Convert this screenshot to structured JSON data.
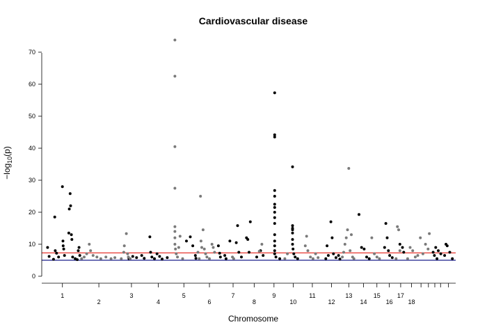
{
  "chart_data": {
    "type": "scatter",
    "title": "Cardiovascular disease",
    "xlabel": "Chromosome",
    "ylabel": "−log",
    "ylabel_sub": "10",
    "ylabel_rest": "(p)",
    "ylim": [
      0,
      75
    ],
    "yticks": [
      0,
      10,
      20,
      30,
      40,
      50,
      60,
      70
    ],
    "grid": false,
    "x_unit": "genome position (chromosome index)",
    "chromosomes": [
      {
        "label": "1",
        "start": 0,
        "end": 1.4,
        "tick_row": 1
      },
      {
        "label": "2",
        "start": 1.4,
        "end": 2.85,
        "tick_row": 2
      },
      {
        "label": "3",
        "start": 2.85,
        "end": 3.95,
        "tick_row": 1
      },
      {
        "label": "4",
        "start": 3.95,
        "end": 4.95,
        "tick_row": 2
      },
      {
        "label": "5",
        "start": 4.95,
        "end": 5.95,
        "tick_row": 1
      },
      {
        "label": "6",
        "start": 5.95,
        "end": 6.95,
        "tick_row": 2
      },
      {
        "label": "7",
        "start": 6.95,
        "end": 7.8,
        "tick_row": 1
      },
      {
        "label": "8",
        "start": 7.8,
        "end": 8.6,
        "tick_row": 2
      },
      {
        "label": "9",
        "start": 8.6,
        "end": 9.35,
        "tick_row": 1
      },
      {
        "label": "10",
        "start": 9.35,
        "end": 10.1,
        "tick_row": 2
      },
      {
        "label": "11",
        "start": 10.1,
        "end": 10.85,
        "tick_row": 1
      },
      {
        "label": "12",
        "start": 10.85,
        "end": 11.6,
        "tick_row": 2
      },
      {
        "label": "13",
        "start": 11.6,
        "end": 12.2,
        "tick_row": 1
      },
      {
        "label": "14",
        "start": 12.2,
        "end": 12.75,
        "tick_row": 2
      },
      {
        "label": "15",
        "start": 12.75,
        "end": 13.25,
        "tick_row": 1
      },
      {
        "label": "16",
        "start": 13.25,
        "end": 13.72,
        "tick_row": 2
      },
      {
        "label": "17",
        "start": 13.72,
        "end": 14.14,
        "tick_row": 1
      },
      {
        "label": "18",
        "start": 14.14,
        "end": 14.57,
        "tick_row": 2
      },
      {
        "label": "",
        "start": 14.57,
        "end": 14.88,
        "tick_row": 1
      },
      {
        "label": "",
        "start": 14.88,
        "end": 15.15,
        "tick_row": 1
      },
      {
        "label": "",
        "start": 15.15,
        "end": 15.38,
        "tick_row": 1
      },
      {
        "label": "",
        "start": 15.38,
        "end": 15.6,
        "tick_row": 1
      },
      {
        "label": "",
        "start": 15.6,
        "end": 16.0,
        "tick_row": 1
      }
    ],
    "thresholds": [
      {
        "value": 7.3,
        "color": "#e8413b"
      },
      {
        "value": 5.0,
        "color": "#1b1f8c"
      }
    ],
    "colors": {
      "odd": "#000000",
      "even": "#7a7a7a"
    },
    "series": [
      {
        "color_group": "odd",
        "points": [
          [
            0.12,
            9.0
          ],
          [
            0.18,
            6.2
          ],
          [
            0.35,
            5.3
          ],
          [
            0.4,
            18.5
          ],
          [
            0.42,
            8.0
          ],
          [
            0.47,
            7.2
          ],
          [
            0.55,
            6.0
          ],
          [
            0.7,
            28.0
          ],
          [
            0.72,
            11.0
          ],
          [
            0.73,
            9.5
          ],
          [
            0.75,
            8.5
          ],
          [
            0.78,
            6.5
          ],
          [
            0.95,
            13.5
          ],
          [
            0.97,
            21.0
          ],
          [
            1.0,
            25.8
          ],
          [
            1.02,
            22.0
          ],
          [
            1.05,
            13.0
          ],
          [
            1.07,
            11.5
          ],
          [
            1.1,
            6.0
          ],
          [
            1.2,
            5.5
          ],
          [
            1.28,
            5.2
          ],
          [
            1.32,
            8.0
          ],
          [
            1.35,
            9.0
          ],
          [
            1.38,
            6.5
          ],
          [
            3.3,
            5.5
          ],
          [
            3.45,
            6.2
          ],
          [
            3.6,
            5.8
          ],
          [
            3.8,
            6.5
          ],
          [
            3.9,
            5.6
          ],
          [
            4.12,
            12.3
          ],
          [
            4.15,
            7.5
          ],
          [
            4.2,
            6.0
          ],
          [
            4.3,
            5.5
          ],
          [
            4.4,
            7.0
          ],
          [
            4.5,
            6.2
          ],
          [
            4.6,
            5.4
          ],
          [
            4.8,
            5.8
          ],
          [
            5.55,
            11.0
          ],
          [
            5.7,
            12.3
          ],
          [
            5.8,
            9.5
          ],
          [
            5.9,
            6.5
          ],
          [
            5.92,
            5.6
          ],
          [
            6.8,
            9.5
          ],
          [
            6.85,
            7.2
          ],
          [
            6.88,
            6.0
          ],
          [
            7.05,
            6.5
          ],
          [
            7.1,
            5.5
          ],
          [
            7.25,
            11.0
          ],
          [
            7.5,
            10.5
          ],
          [
            7.55,
            15.8
          ],
          [
            7.6,
            7.5
          ],
          [
            7.7,
            6.0
          ],
          [
            7.9,
            12.0
          ],
          [
            7.95,
            11.5
          ],
          [
            8.0,
            7.5
          ],
          [
            8.05,
            17.0
          ],
          [
            8.3,
            6.0
          ],
          [
            8.45,
            8.0
          ],
          [
            8.55,
            6.5
          ],
          [
            9.0,
            57.3
          ],
          [
            9.0,
            44.2
          ],
          [
            9.0,
            43.5
          ],
          [
            9.0,
            26.8
          ],
          [
            9.0,
            25.0
          ],
          [
            9.0,
            22.5
          ],
          [
            9.0,
            21.5
          ],
          [
            9.0,
            20.0
          ],
          [
            9.0,
            18.3
          ],
          [
            9.0,
            16.5
          ],
          [
            9.0,
            13.0
          ],
          [
            9.0,
            11.0
          ],
          [
            9.0,
            9.5
          ],
          [
            9.0,
            8.0
          ],
          [
            9.0,
            7.0
          ],
          [
            9.05,
            6.0
          ],
          [
            9.2,
            5.5
          ],
          [
            9.7,
            34.2
          ],
          [
            9.7,
            15.8
          ],
          [
            9.7,
            15.0
          ],
          [
            9.7,
            14.5
          ],
          [
            9.7,
            13.5
          ],
          [
            9.7,
            11.5
          ],
          [
            9.7,
            10.0
          ],
          [
            9.72,
            8.5
          ],
          [
            9.75,
            7.0
          ],
          [
            9.8,
            6.0
          ],
          [
            9.9,
            5.5
          ],
          [
            11.0,
            5.5
          ],
          [
            11.05,
            9.5
          ],
          [
            11.1,
            6.5
          ],
          [
            11.2,
            17.0
          ],
          [
            11.25,
            12.0
          ],
          [
            11.3,
            7.0
          ],
          [
            11.4,
            5.8
          ],
          [
            11.5,
            6.5
          ],
          [
            11.55,
            5.4
          ],
          [
            12.3,
            19.3
          ],
          [
            12.4,
            9.0
          ],
          [
            12.5,
            8.5
          ],
          [
            12.6,
            6.0
          ],
          [
            12.7,
            5.5
          ],
          [
            13.3,
            9.0
          ],
          [
            13.35,
            16.5
          ],
          [
            13.4,
            12.0
          ],
          [
            13.45,
            8.0
          ],
          [
            13.5,
            6.5
          ],
          [
            13.6,
            5.8
          ],
          [
            13.9,
            10.0
          ],
          [
            14.0,
            9.0
          ],
          [
            14.05,
            7.5
          ],
          [
            15.2,
            7.5
          ],
          [
            15.25,
            6.5
          ],
          [
            15.3,
            9.0
          ],
          [
            15.35,
            5.5
          ],
          [
            15.4,
            8.0
          ],
          [
            15.5,
            7.0
          ],
          [
            15.65,
            6.5
          ],
          [
            15.7,
            10.0
          ],
          [
            15.75,
            9.5
          ],
          [
            15.85,
            7.5
          ],
          [
            15.95,
            5.5
          ]
        ]
      },
      {
        "color_group": "even",
        "points": [
          [
            1.45,
            5.5
          ],
          [
            1.55,
            6.0
          ],
          [
            1.65,
            7.0
          ],
          [
            1.75,
            10.0
          ],
          [
            1.8,
            8.0
          ],
          [
            1.9,
            6.5
          ],
          [
            2.05,
            6.0
          ],
          [
            2.2,
            5.5
          ],
          [
            2.4,
            6.0
          ],
          [
            2.6,
            5.5
          ],
          [
            2.75,
            5.8
          ],
          [
            3.0,
            5.5
          ],
          [
            3.1,
            7.5
          ],
          [
            3.12,
            9.5
          ],
          [
            3.2,
            13.3
          ],
          [
            3.25,
            7.0
          ],
          [
            3.28,
            6.0
          ],
          [
            3.35,
            5.5
          ],
          [
            5.1,
            73.8
          ],
          [
            5.1,
            62.5
          ],
          [
            5.1,
            40.5
          ],
          [
            5.1,
            27.5
          ],
          [
            5.1,
            15.5
          ],
          [
            5.1,
            14.0
          ],
          [
            5.1,
            12.0
          ],
          [
            5.1,
            10.0
          ],
          [
            5.12,
            8.5
          ],
          [
            5.15,
            7.0
          ],
          [
            5.2,
            6.0
          ],
          [
            5.25,
            9.0
          ],
          [
            5.3,
            12.5
          ],
          [
            5.4,
            5.5
          ],
          [
            6.0,
            7.5
          ],
          [
            6.05,
            5.5
          ],
          [
            6.1,
            25.0
          ],
          [
            6.12,
            11.0
          ],
          [
            6.15,
            9.0
          ],
          [
            6.2,
            14.5
          ],
          [
            6.25,
            8.5
          ],
          [
            6.3,
            7.0
          ],
          [
            6.35,
            6.0
          ],
          [
            6.45,
            5.5
          ],
          [
            6.55,
            10.0
          ],
          [
            6.6,
            9.0
          ],
          [
            6.65,
            7.5
          ],
          [
            7.35,
            6.0
          ],
          [
            7.4,
            5.5
          ],
          [
            8.4,
            7.8
          ],
          [
            8.5,
            10.0
          ],
          [
            9.4,
            5.5
          ],
          [
            9.5,
            7.0
          ],
          [
            10.2,
            9.5
          ],
          [
            10.25,
            12.5
          ],
          [
            10.3,
            8.0
          ],
          [
            10.4,
            6.0
          ],
          [
            10.5,
            5.5
          ],
          [
            10.6,
            7.0
          ],
          [
            10.7,
            5.8
          ],
          [
            11.65,
            6.0
          ],
          [
            11.7,
            7.5
          ],
          [
            11.75,
            10.0
          ],
          [
            11.8,
            12.0
          ],
          [
            11.85,
            14.5
          ],
          [
            11.9,
            33.7
          ],
          [
            11.95,
            8.0
          ],
          [
            12.0,
            13.0
          ],
          [
            12.05,
            6.0
          ],
          [
            12.1,
            5.5
          ],
          [
            12.8,
            12.0
          ],
          [
            12.9,
            7.0
          ],
          [
            13.0,
            6.0
          ],
          [
            13.1,
            5.5
          ],
          [
            13.75,
            5.5
          ],
          [
            13.8,
            15.5
          ],
          [
            13.85,
            14.5
          ],
          [
            13.9,
            8.0
          ],
          [
            14.2,
            5.5
          ],
          [
            14.3,
            9.0
          ],
          [
            14.4,
            8.0
          ],
          [
            14.5,
            6.0
          ],
          [
            14.6,
            6.5
          ],
          [
            14.7,
            12.0
          ],
          [
            14.8,
            7.0
          ],
          [
            14.9,
            10.0
          ],
          [
            15.0,
            8.5
          ],
          [
            15.05,
            13.3
          ]
        ]
      }
    ]
  }
}
